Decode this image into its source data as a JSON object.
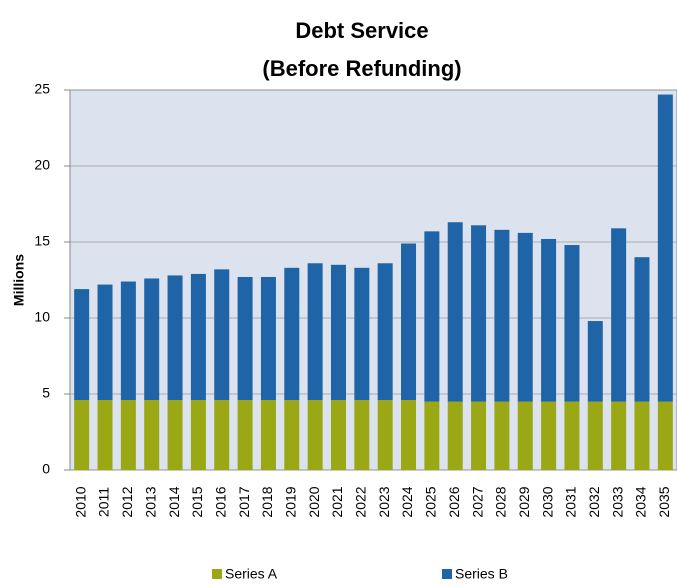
{
  "chart_data": {
    "type": "stacked_bar",
    "title": "Debt Service",
    "subtitle": "(Before Refunding)",
    "y_label": "Millions",
    "categories": [
      "2010",
      "2011",
      "2012",
      "2013",
      "2014",
      "2015",
      "2016",
      "2017",
      "2018",
      "2019",
      "2020",
      "2021",
      "2022",
      "2023",
      "2024",
      "2025",
      "2026",
      "2027",
      "2028",
      "2029",
      "2030",
      "2031",
      "2032",
      "2033",
      "2034",
      "2035"
    ],
    "series": [
      {
        "name": "Series A",
        "color": "#9aa815",
        "values": [
          4.6,
          4.6,
          4.6,
          4.6,
          4.6,
          4.6,
          4.6,
          4.6,
          4.6,
          4.6,
          4.6,
          4.6,
          4.6,
          4.6,
          4.6,
          4.5,
          4.5,
          4.5,
          4.5,
          4.5,
          4.5,
          4.5,
          4.5,
          4.5,
          4.5,
          4.5
        ]
      },
      {
        "name": "Series B",
        "color": "#1f64a6",
        "values": [
          7.3,
          7.6,
          7.8,
          8.0,
          8.2,
          8.3,
          8.6,
          8.1,
          8.1,
          8.7,
          9.0,
          8.9,
          8.7,
          9.0,
          10.3,
          11.2,
          11.8,
          11.6,
          11.3,
          11.1,
          10.7,
          10.3,
          5.3,
          11.4,
          9.5,
          20.2
        ]
      }
    ],
    "ylim": [
      0,
      25
    ],
    "yticks": [
      0,
      5,
      10,
      15,
      20,
      25
    ],
    "grid": true,
    "legend": "bottom"
  }
}
